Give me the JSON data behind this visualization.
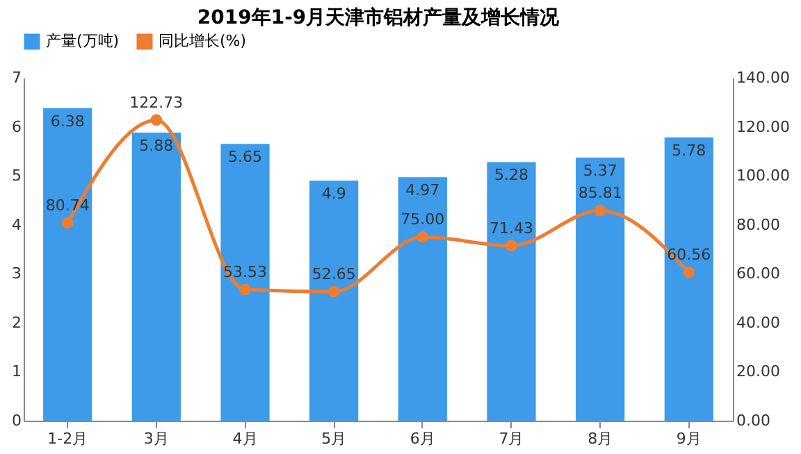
{
  "chart_data": {
    "type": "bar",
    "title": "2019年1-9月天津市铝材产量及增长情况",
    "categories": [
      "1-2月",
      "3月",
      "4月",
      "5月",
      "6月",
      "7月",
      "8月",
      "9月"
    ],
    "series": [
      {
        "name": "产量(万吨)",
        "color": "#3d9be9",
        "values": [
          6.38,
          5.88,
          5.65,
          4.9,
          4.97,
          5.28,
          5.37,
          5.78
        ]
      },
      {
        "name": "同比增长(%)",
        "type": "line",
        "axis": "y2",
        "color": "#ed7d31",
        "values": [
          80.74,
          122.73,
          53.53,
          52.65,
          75.0,
          71.43,
          85.81,
          60.56
        ],
        "value_labels": [
          "80.74",
          "122.73",
          "53.53",
          "52.65",
          "75.00",
          "71.43",
          "85.81",
          "60.56"
        ]
      }
    ],
    "ylim": [
      0,
      7
    ],
    "yticks": [
      0,
      1,
      2,
      3,
      4,
      5,
      6,
      7
    ],
    "y2lim": [
      0,
      140
    ],
    "y2ticks": [
      {
        "value": 0,
        "label": "0.00"
      },
      {
        "value": 20,
        "label": "20.00"
      },
      {
        "value": 40,
        "label": "40.00"
      },
      {
        "value": 60,
        "label": "60.00"
      },
      {
        "value": 80,
        "label": "80.00"
      },
      {
        "value": 100,
        "label": "100.00"
      },
      {
        "value": 120,
        "label": "120.00"
      },
      {
        "value": 140,
        "label": "140.00"
      }
    ],
    "data_labels": true,
    "legend": "top",
    "marker": "circle",
    "line_style": "solid"
  }
}
